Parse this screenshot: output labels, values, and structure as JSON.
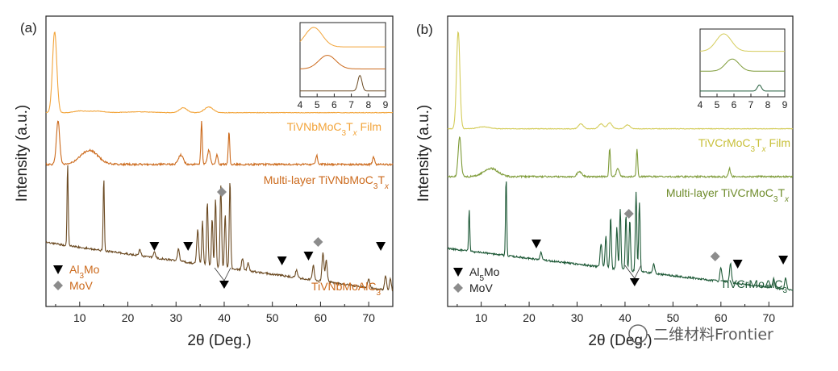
{
  "watermark": {
    "text": "二维材料Frontier"
  },
  "colors": {
    "film_a": "#f2a43a",
    "multilayer_a": "#cc6a1c",
    "max_a": "#6b4a22",
    "film_b": "#d4cc5a",
    "multilayer_b": "#7e9b38",
    "max_b": "#1f5a38",
    "label_a_film": "#f2a43a",
    "label_a_multi": "#cc6a1c",
    "label_a_max": "#cc6a1c",
    "label_a_legend": "#cc6a1c",
    "label_b_film": "#c8c03a",
    "label_b_multi": "#6f8c2c",
    "label_b_max": "#1f5a38",
    "label_b_legend": "#222222",
    "diamond": "#8c8c8c",
    "triangle": "#000000"
  },
  "chart_data": [
    {
      "panel": "(a)",
      "type": "line",
      "xlabel": "2θ (Deg.)",
      "ylabel": "Intensity (a.u.)",
      "xlim": [
        3,
        75
      ],
      "xticks": [
        10,
        20,
        30,
        40,
        50,
        60,
        70
      ],
      "series": [
        {
          "name": "TiVNbMoC3Tx Film",
          "label_main": "TiVNbMoC",
          "label_sub1": "3",
          "label_mid": "T",
          "label_sub2": "x",
          "label_tail": " Film",
          "color_key": "film_a",
          "baseline": 0.12,
          "noise": 0.003,
          "peaks": [
            [
              4.8,
              1.0,
              0.45
            ],
            [
              10.0,
              0.02,
              1.2
            ],
            [
              13.5,
              0.02,
              1.5
            ],
            [
              22,
              0.01,
              3
            ],
            [
              31.5,
              0.06,
              0.8
            ],
            [
              36.8,
              0.07,
              0.9
            ]
          ]
        },
        {
          "name": "Multi-layer TiVNbMoC3Tx",
          "label_main": "Multi-layer TiVNbMoC",
          "label_sub1": "3",
          "label_mid": "T",
          "label_sub2": "x",
          "label_tail": "",
          "color_key": "multilayer_a",
          "baseline": 0.08,
          "noise": 0.012,
          "peaks": [
            [
              5.5,
              0.55,
              0.35
            ],
            [
              12.0,
              0.18,
              1.8
            ],
            [
              31.0,
              0.12,
              0.5
            ],
            [
              35.3,
              0.55,
              0.15
            ],
            [
              36.8,
              0.18,
              0.3
            ],
            [
              38.5,
              0.12,
              0.2
            ],
            [
              41.0,
              0.42,
              0.15
            ],
            [
              59.2,
              0.12,
              0.2
            ],
            [
              71.0,
              0.1,
              0.2
            ]
          ]
        },
        {
          "name": "TiVNbMoAlC3",
          "label_main": "TiVNbMoAlC",
          "label_sub1": "3",
          "label_mid": "",
          "label_sub2": "",
          "label_tail": "",
          "color_key": "max_a",
          "baseline_start": 0.5,
          "baseline_end": 0.0,
          "noise": 0.01,
          "peaks": [
            [
              7.5,
              0.85,
              0.12
            ],
            [
              15.0,
              0.75,
              0.12
            ],
            [
              22.5,
              0.06,
              0.2
            ],
            [
              25.5,
              0.06,
              0.2
            ],
            [
              30.5,
              0.12,
              0.2
            ],
            [
              34.5,
              0.35,
              0.2
            ],
            [
              35.5,
              0.45,
              0.15
            ],
            [
              36.5,
              0.65,
              0.15
            ],
            [
              37.5,
              0.5,
              0.15
            ],
            [
              38.2,
              0.7,
              0.15
            ],
            [
              39.3,
              0.85,
              0.15
            ],
            [
              40.2,
              0.55,
              0.15
            ],
            [
              41.2,
              0.9,
              0.15
            ],
            [
              43.8,
              0.12,
              0.2
            ],
            [
              45.0,
              0.08,
              0.2
            ],
            [
              55.0,
              0.08,
              0.2
            ],
            [
              58.5,
              0.15,
              0.2
            ],
            [
              60.5,
              0.3,
              0.2
            ],
            [
              61.2,
              0.22,
              0.2
            ],
            [
              70.0,
              0.1,
              0.2
            ],
            [
              73.5,
              0.15,
              0.2
            ],
            [
              74.5,
              0.12,
              0.2
            ]
          ]
        }
      ],
      "markers": {
        "triangles": [
          25.5,
          32.5,
          52.0,
          57.5,
          72.5
        ],
        "diamonds": [
          39.5,
          59.5
        ],
        "down_arrow_x": 40.0
      },
      "legend": [
        {
          "marker": "triangle",
          "text_main": "Al",
          "text_sub": "3",
          "text_tail": "Mo"
        },
        {
          "marker": "diamond",
          "text_main": "MoV",
          "text_sub": "",
          "text_tail": ""
        }
      ],
      "inset": {
        "xlim": [
          4,
          9
        ],
        "xticks": [
          4,
          5,
          6,
          7,
          8,
          9
        ],
        "series": [
          {
            "color_key": "film_a",
            "peaks": [
              [
                4.8,
                1.0,
                0.5
              ]
            ]
          },
          {
            "color_key": "multilayer_a",
            "peaks": [
              [
                5.6,
                0.7,
                0.5
              ]
            ]
          },
          {
            "color_key": "max_a",
            "peaks": [
              [
                7.5,
                0.8,
                0.12
              ]
            ]
          }
        ]
      }
    },
    {
      "panel": "(b)",
      "type": "line",
      "xlabel": "2θ (Deg.)",
      "ylabel": "Intensity (a.u.)",
      "xlim": [
        3,
        75
      ],
      "xticks": [
        10,
        20,
        30,
        40,
        50,
        60,
        70
      ],
      "series": [
        {
          "name": "TiVCrMoC3Tx Film",
          "label_main": "TiVCrMoC",
          "label_sub1": "3",
          "label_mid": "T",
          "label_sub2": "x",
          "label_tail": " Film",
          "color_key": "film_b",
          "baseline": 0.12,
          "noise": 0.003,
          "peaks": [
            [
              5.2,
              1.0,
              0.35
            ],
            [
              10.5,
              0.02,
              1.2
            ],
            [
              30.8,
              0.05,
              0.5
            ],
            [
              35.0,
              0.05,
              0.5
            ],
            [
              36.8,
              0.06,
              0.5
            ],
            [
              40.5,
              0.04,
              0.5
            ]
          ]
        },
        {
          "name": "Multi-layer TiVCrMoC3Tx",
          "label_main": "Multi-layer TiVCrMoC",
          "label_sub1": "3",
          "label_mid": "T",
          "label_sub2": "x",
          "label_tail": "",
          "color_key": "multilayer_b",
          "baseline": 0.08,
          "noise": 0.01,
          "peaks": [
            [
              5.5,
              0.5,
              0.3
            ],
            [
              12.0,
              0.1,
              1.5
            ],
            [
              30.5,
              0.06,
              0.5
            ],
            [
              36.8,
              0.35,
              0.15
            ],
            [
              38.5,
              0.1,
              0.3
            ],
            [
              42.5,
              0.35,
              0.15
            ],
            [
              61.8,
              0.1,
              0.2
            ]
          ]
        },
        {
          "name": "TiVCrMoAlC3",
          "label_main": "TiVCrMoAlC",
          "label_sub1": "3",
          "label_mid": "",
          "label_sub2": "",
          "label_tail": "",
          "color_key": "max_b",
          "baseline_start": 0.45,
          "baseline_end": 0.0,
          "noise": 0.01,
          "peaks": [
            [
              7.5,
              0.45,
              0.12
            ],
            [
              15.2,
              0.85,
              0.12
            ],
            [
              22.5,
              0.08,
              0.2
            ],
            [
              35.0,
              0.25,
              0.2
            ],
            [
              36.0,
              0.35,
              0.15
            ],
            [
              37.0,
              0.55,
              0.15
            ],
            [
              38.3,
              0.45,
              0.15
            ],
            [
              39.0,
              0.65,
              0.15
            ],
            [
              40.2,
              0.6,
              0.15
            ],
            [
              41.0,
              0.55,
              0.15
            ],
            [
              42.3,
              0.85,
              0.15
            ],
            [
              43.0,
              0.75,
              0.15
            ],
            [
              46.0,
              0.1,
              0.2
            ],
            [
              60.0,
              0.15,
              0.2
            ],
            [
              62.0,
              0.2,
              0.2
            ],
            [
              71.0,
              0.1,
              0.2
            ],
            [
              73.5,
              0.12,
              0.2
            ]
          ]
        }
      ],
      "markers": {
        "triangles": [
          21.5,
          63.5,
          73.0
        ],
        "diamonds": [
          40.8,
          58.8
        ],
        "down_arrow_x": 42.0
      },
      "legend": [
        {
          "marker": "triangle",
          "text_main": "Al",
          "text_sub": "5",
          "text_tail": "Mo"
        },
        {
          "marker": "diamond",
          "text_main": "MoV",
          "text_sub": "",
          "text_tail": ""
        }
      ],
      "inset": {
        "xlim": [
          4,
          9
        ],
        "xticks": [
          4,
          5,
          6,
          7,
          8,
          9
        ],
        "series": [
          {
            "color_key": "film_b",
            "peaks": [
              [
                5.4,
                1.0,
                0.45
              ]
            ]
          },
          {
            "color_key": "multilayer_b",
            "peaks": [
              [
                5.9,
                0.7,
                0.4
              ]
            ]
          },
          {
            "color_key": "max_b",
            "peaks": [
              [
                7.5,
                0.35,
                0.12
              ]
            ]
          }
        ]
      }
    }
  ]
}
